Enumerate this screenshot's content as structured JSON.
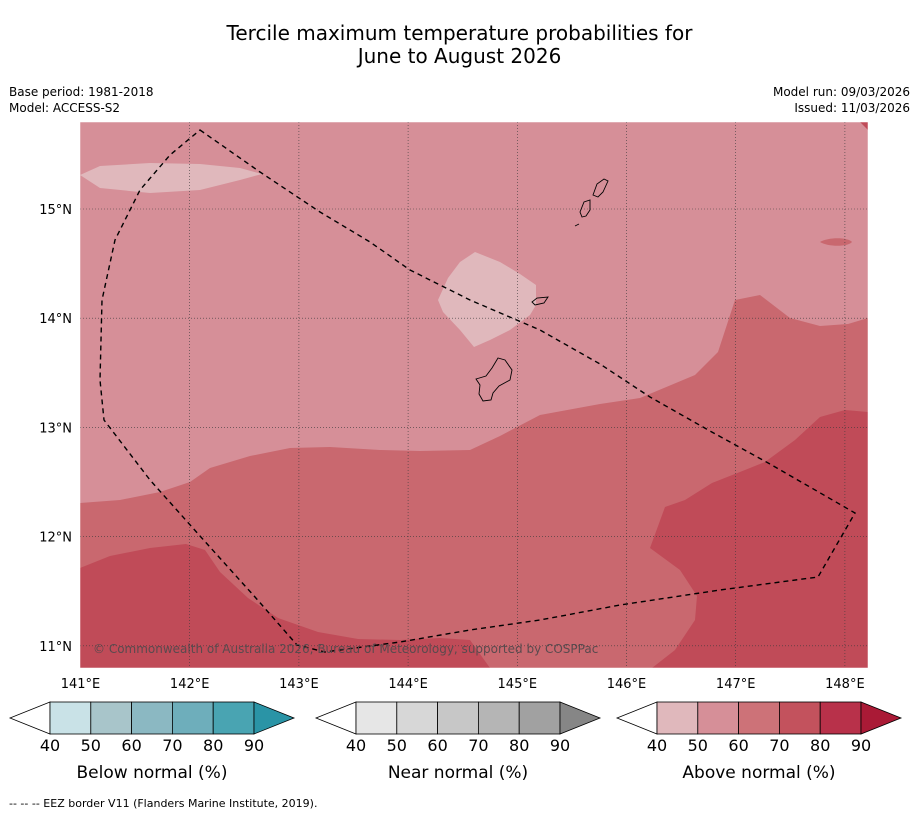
{
  "title": {
    "line1": "Tercile maximum temperature probabilities for",
    "line2": "June to August 2026"
  },
  "meta": {
    "base_period": "Base period: 1981-2018",
    "model": "Model: ACCESS-S2",
    "model_run": "Model run: 09/03/2026",
    "issued": "Issued: 11/03/2026"
  },
  "map": {
    "lon_range": [
      140.9,
      148.2
    ],
    "lat_range": [
      10.8,
      15.8
    ],
    "lon_ticks": [
      141,
      142,
      143,
      144,
      145,
      146,
      147,
      148
    ],
    "lon_labels": [
      "141°E",
      "142°E",
      "143°E",
      "144°E",
      "145°E",
      "146°E",
      "147°E",
      "148°E"
    ],
    "lat_ticks": [
      15,
      14,
      13,
      12,
      11
    ],
    "lat_labels": [
      "15°N",
      "14°N",
      "13°N",
      "12°N",
      "11°N"
    ],
    "copyright": "© Commonwealth of Australia 2026, Bureau of Meteorology, supported by COSPPac"
  },
  "colors": {
    "above_50_60": "#d68f98",
    "above_40_50": "#e0b8bc",
    "above_60_70": "#c9686f",
    "above_70_80": "#c04b58",
    "eez_line": "#000000"
  },
  "colorbars": [
    {
      "name": "below",
      "title": "Below normal (%)",
      "colors": [
        "#c9e2e7",
        "#a8c5ca",
        "#8bb8c2",
        "#6eaebb",
        "#49a4b2",
        "#2a94a6"
      ],
      "labels": [
        "40",
        "50",
        "60",
        "70",
        "80",
        "90"
      ]
    },
    {
      "name": "near",
      "title": "Near normal (%)",
      "colors": [
        "#e6e6e6",
        "#d7d7d7",
        "#c7c7c7",
        "#b5b5b5",
        "#a1a1a1",
        "#868686"
      ],
      "labels": [
        "40",
        "50",
        "60",
        "70",
        "80",
        "90"
      ]
    },
    {
      "name": "above",
      "title": "Above normal (%)",
      "colors": [
        "#e0b8bc",
        "#d68f98",
        "#cd7278",
        "#c3525d",
        "#b8314a",
        "#aa1a36"
      ],
      "labels": [
        "40",
        "50",
        "60",
        "70",
        "80",
        "90"
      ]
    }
  ],
  "legend": {
    "eez": "--  --  -- EEZ border V11 (Flanders Marine Institute, 2019)."
  }
}
